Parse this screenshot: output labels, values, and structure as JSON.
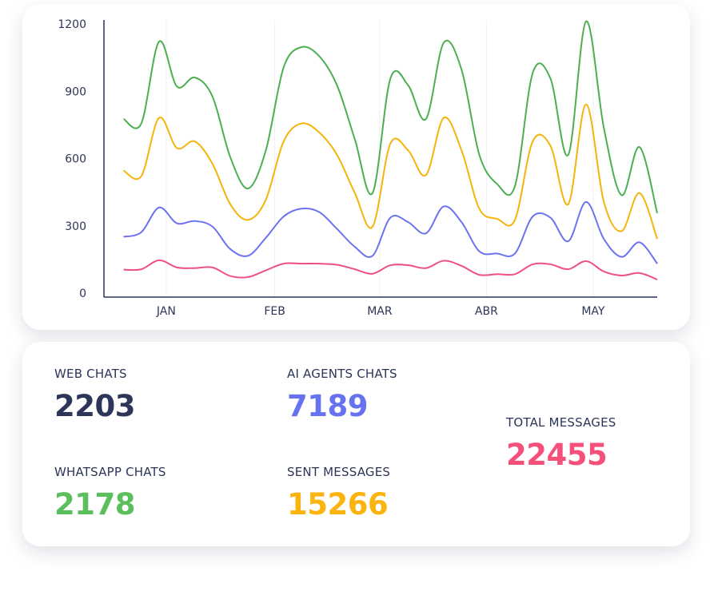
{
  "chart_data": {
    "type": "line",
    "x": [
      0,
      1,
      2,
      3,
      4,
      5,
      6,
      7,
      8,
      9,
      10,
      11,
      12,
      13,
      14,
      15,
      16,
      17,
      18,
      19,
      20,
      21,
      22,
      23,
      24,
      25,
      26,
      27,
      28,
      29,
      30
    ],
    "xlim": [
      -1.1,
      30
    ],
    "xticks": [
      {
        "value": 2.4,
        "label": "JAN"
      },
      {
        "value": 8.5,
        "label": "FEB"
      },
      {
        "value": 14.4,
        "label": "MAR"
      },
      {
        "value": 20.4,
        "label": "ABR"
      },
      {
        "value": 26.4,
        "label": "MAY"
      }
    ],
    "ylim": [
      0,
      1200
    ],
    "yticks": [
      0,
      300,
      600,
      900,
      1200
    ],
    "grid": true,
    "series": [
      {
        "color": "#4caf50",
        "values": [
          780,
          760,
          1125,
          925,
          965,
          880,
          610,
          470,
          640,
          1010,
          1100,
          1060,
          930,
          690,
          450,
          960,
          930,
          780,
          1120,
          1000,
          620,
          490,
          480,
          985,
          960,
          620,
          1215,
          740,
          440,
          655,
          360
        ]
      },
      {
        "color": "#f5b40a",
        "values": [
          550,
          525,
          785,
          650,
          680,
          580,
          400,
          330,
          420,
          680,
          760,
          720,
          620,
          450,
          300,
          670,
          640,
          530,
          785,
          640,
          380,
          335,
          330,
          680,
          660,
          400,
          845,
          410,
          280,
          450,
          245
        ]
      },
      {
        "color": "#6b73f0",
        "values": [
          255,
          275,
          385,
          315,
          325,
          300,
          200,
          170,
          250,
          345,
          380,
          365,
          290,
          210,
          170,
          340,
          320,
          270,
          390,
          320,
          190,
          180,
          180,
          345,
          340,
          235,
          410,
          245,
          165,
          230,
          135
        ]
      },
      {
        "color": "#ef4f86",
        "values": [
          108,
          110,
          150,
          118,
          115,
          118,
          80,
          75,
          105,
          135,
          135,
          135,
          130,
          110,
          90,
          128,
          128,
          115,
          148,
          125,
          85,
          88,
          88,
          132,
          132,
          110,
          146,
          100,
          82,
          93,
          64
        ]
      }
    ]
  },
  "stats": [
    {
      "label": "WEB CHATS",
      "value": 2203,
      "color": "#2d3558"
    },
    {
      "label": "AI AGENTS CHATS",
      "value": 7189,
      "color": "#6672f0"
    },
    {
      "label": "WHATSAPP CHATS",
      "value": 2178,
      "color": "#5cbf5e"
    },
    {
      "label": "SENT MESSAGES",
      "value": 15266,
      "color": "#fbb40f"
    },
    {
      "label": "TOTAL MESSAGES",
      "value": 22455,
      "color": "#f5507a"
    }
  ]
}
